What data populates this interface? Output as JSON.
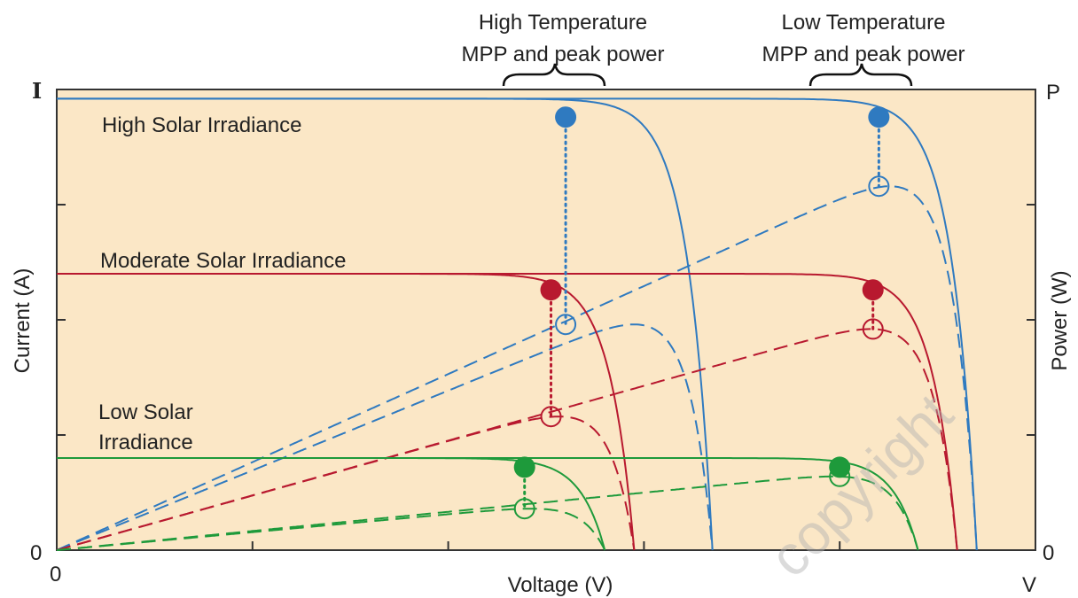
{
  "chart_data": {
    "type": "line",
    "xlabel": "Voltage (V)",
    "ylabel": "Current (A)",
    "ylabel_right": "Power (W)",
    "x_tick_labels": {
      "origin": "0",
      "end": "V"
    },
    "y_tick_labels": {
      "origin": "0",
      "top": "I"
    },
    "y2_tick_labels": {
      "origin": "0",
      "top": "P"
    },
    "annotations": {
      "high_temp_line1": "High Temperature",
      "high_temp_line2": "MPP and peak power",
      "low_temp_line1": "Low Temperature",
      "low_temp_line2": "MPP and peak power",
      "high_irr": "High Solar Irradiance",
      "mod_irr": "Moderate Solar Irradiance",
      "low_irr_line1": "Low Solar",
      "low_irr_line2": "Irradiance"
    },
    "watermark": "copyright",
    "xlim": [
      0,
      1
    ],
    "ylim": [
      0,
      1
    ],
    "series": [
      {
        "irradiance": "high",
        "temperature": "high",
        "color": "#2f7ac0",
        "isc": 0.98,
        "voc": 0.67,
        "mpp_v": 0.52,
        "mpp_i": 0.94,
        "peak_power": 0.49
      },
      {
        "irradiance": "high",
        "temperature": "low",
        "color": "#2f7ac0",
        "isc": 0.98,
        "voc": 0.94,
        "mpp_v": 0.84,
        "mpp_i": 0.94,
        "peak_power": 0.79
      },
      {
        "irradiance": "moderate",
        "temperature": "high",
        "color": "#b8192f",
        "isc": 0.6,
        "voc": 0.59,
        "mpp_v": 0.505,
        "mpp_i": 0.565,
        "peak_power": 0.29
      },
      {
        "irradiance": "moderate",
        "temperature": "low",
        "color": "#b8192f",
        "isc": 0.6,
        "voc": 0.92,
        "mpp_v": 0.834,
        "mpp_i": 0.565,
        "peak_power": 0.48
      },
      {
        "irradiance": "low",
        "temperature": "high",
        "color": "#1e9a3b",
        "isc": 0.2,
        "voc": 0.56,
        "mpp_v": 0.478,
        "mpp_i": 0.18,
        "peak_power": 0.09
      },
      {
        "irradiance": "low",
        "temperature": "low",
        "color": "#1e9a3b",
        "isc": 0.2,
        "voc": 0.88,
        "mpp_v": 0.8,
        "mpp_i": 0.18,
        "peak_power": 0.16
      }
    ]
  }
}
